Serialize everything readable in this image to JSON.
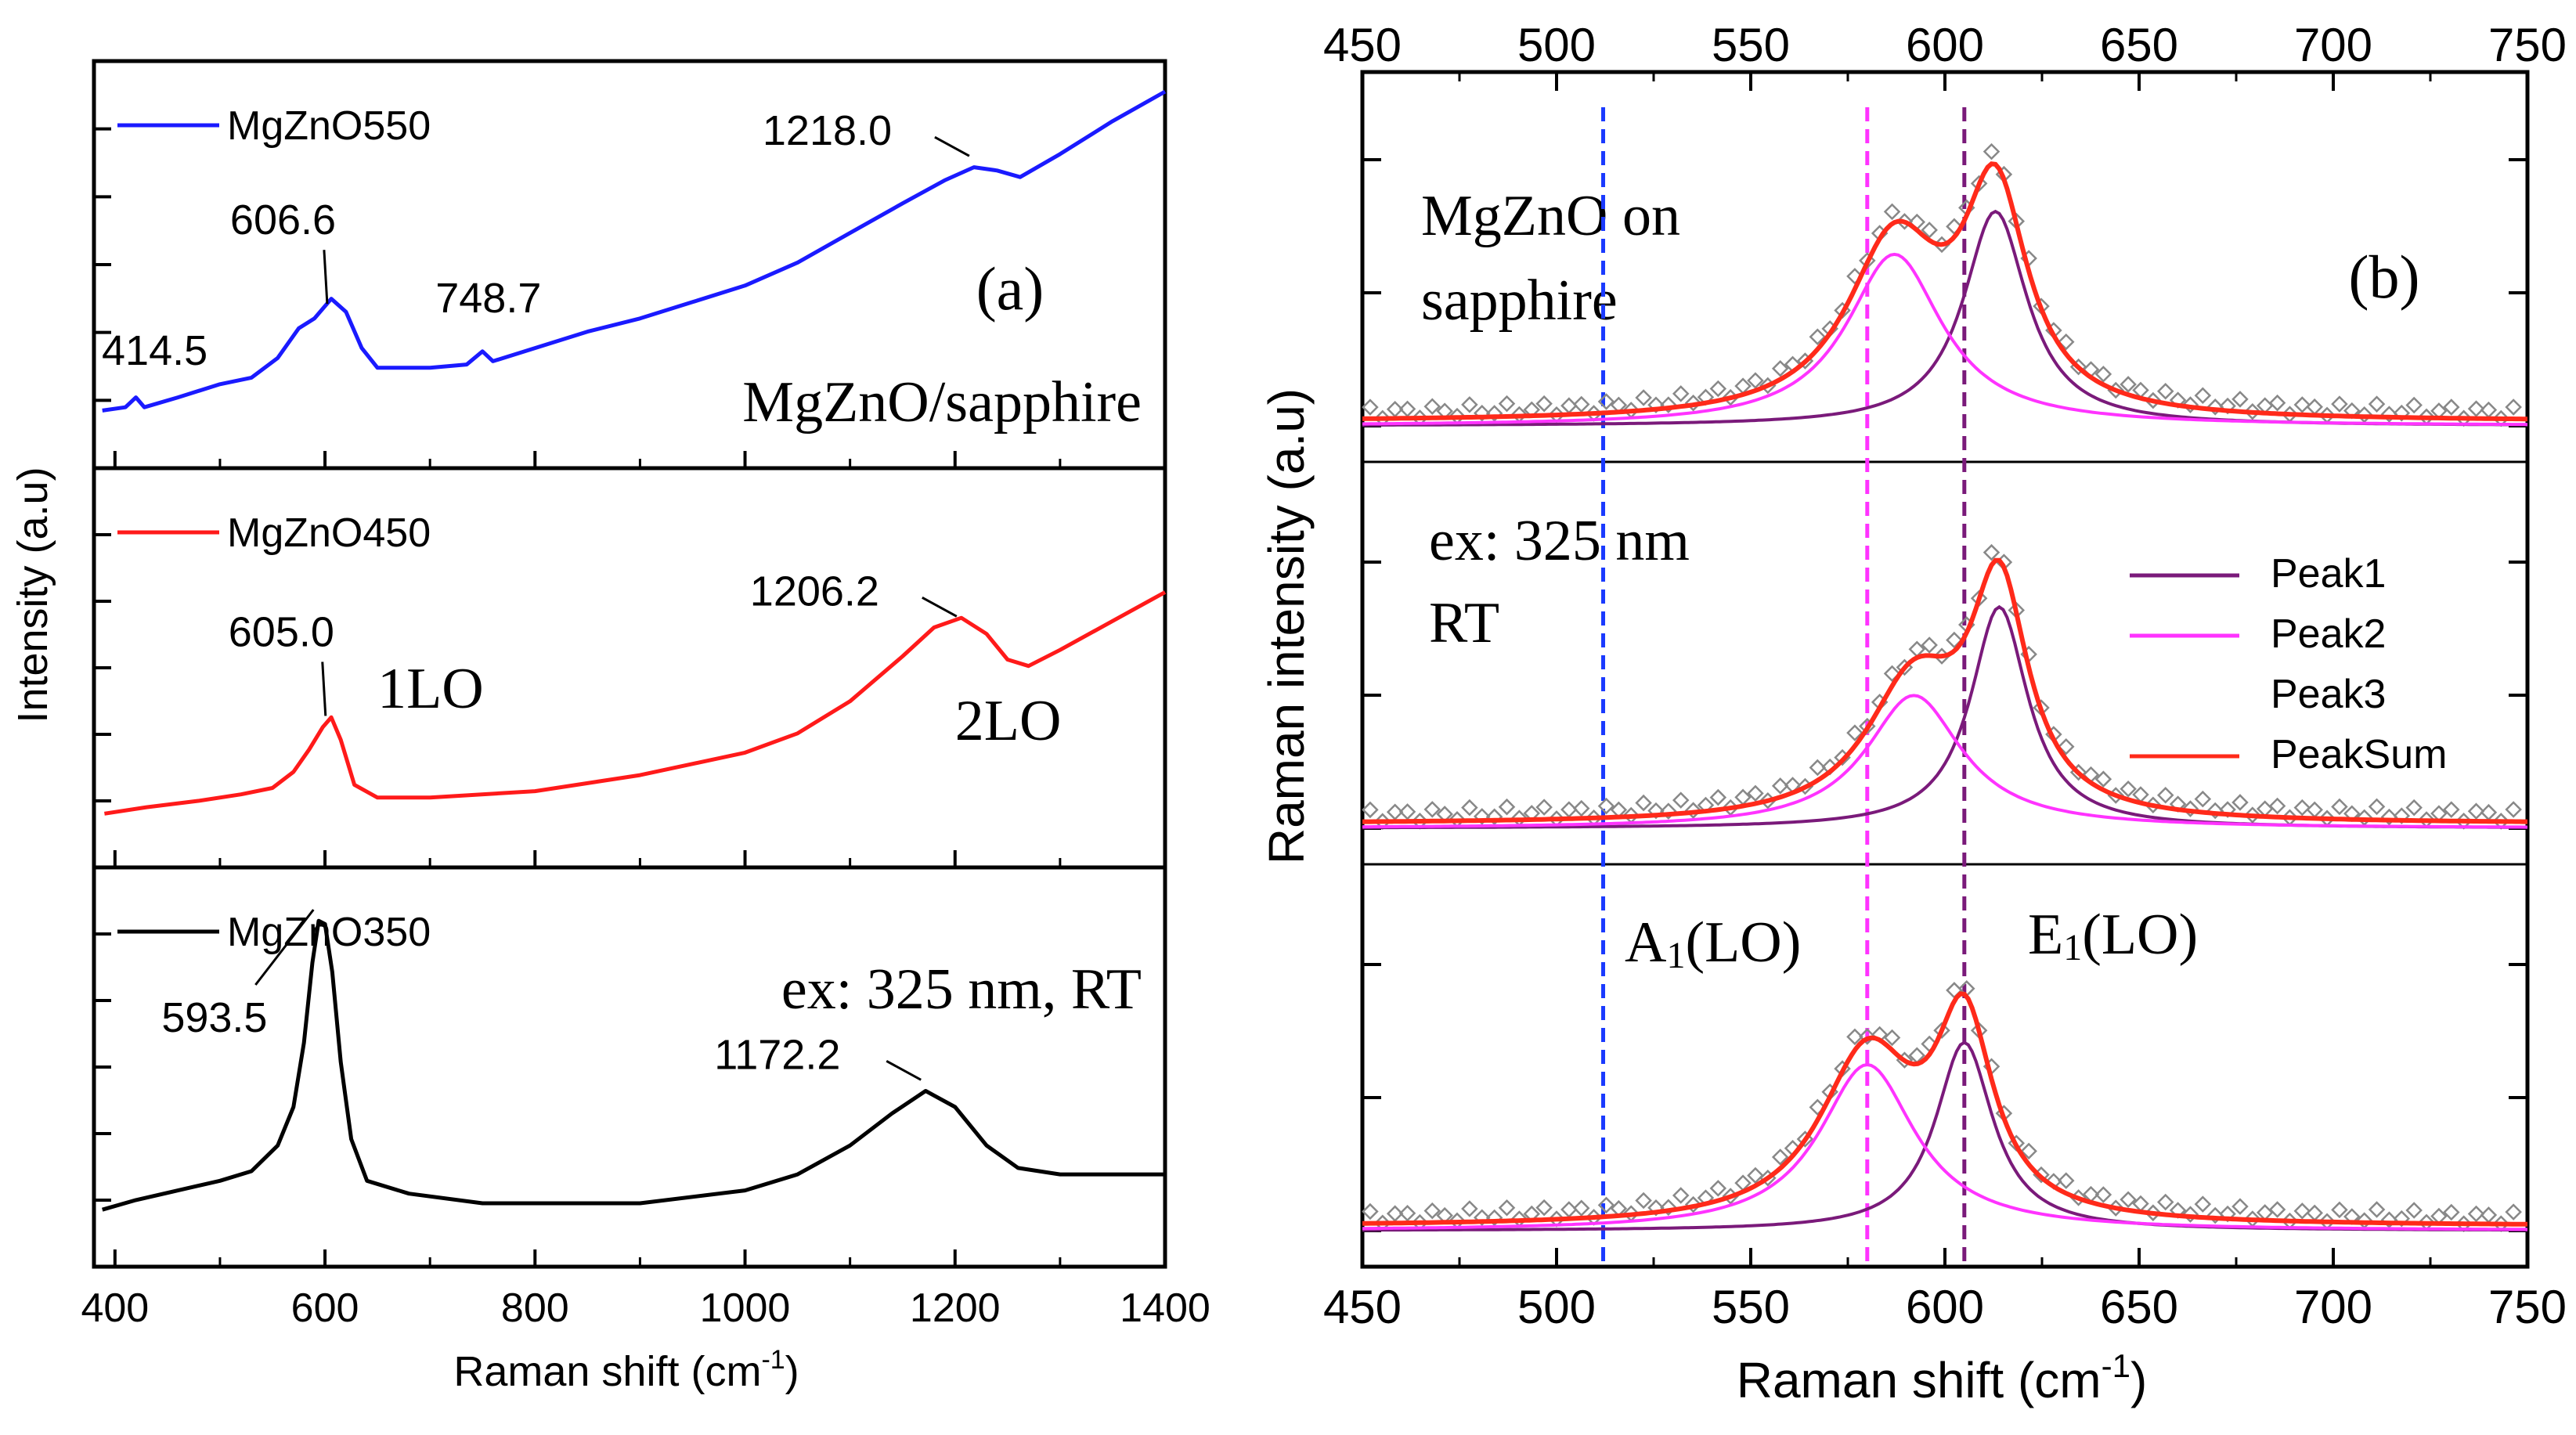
{
  "colors": {
    "MgZnO550": "#1a1aff",
    "MgZnO450": "#ff1a1a",
    "MgZnO350": "#000000",
    "Peak1": "#7a1a7a",
    "Peak2": "#ff33ff",
    "PeakSum": "#ff2a1a",
    "exp": "#888888",
    "panel_label": "#2020d0",
    "line_blue": "#1a3aff",
    "line_magenta": "#ff33ff",
    "line_purple": "#7a1a7a"
  },
  "chart_data": [
    {
      "id": "a",
      "type": "line",
      "panel_label": "(a)",
      "xlabel": "Raman shift (cm",
      "xlabel_sup": "-1",
      "xlabel_end": ")",
      "ylabel": "Intensity (a.u)",
      "xlim": [
        380,
        1400
      ],
      "xticks": [
        400,
        600,
        800,
        1000,
        1200,
        1400
      ],
      "xtick_labels": [
        "400",
        "600",
        "800",
        "1000",
        "1200",
        "1400"
      ],
      "subpanels": [
        {
          "series": "MgZnO550",
          "legend": "MgZnO550",
          "sample_label": "MgZnO/sapphire",
          "peaks": [
            {
              "label": "414.5",
              "x": 420,
              "y": 0.1
            },
            {
              "label": "606.6",
              "x": 606.6,
              "y": 0.39
            },
            {
              "label": "748.7",
              "x": 750,
              "y": 0.2
            },
            {
              "label": "1218.0",
              "x": 1218,
              "y": 0.84
            }
          ],
          "points": [
            [
              388,
              0.08
            ],
            [
              410,
              0.09
            ],
            [
              420,
              0.12
            ],
            [
              428,
              0.09
            ],
            [
              460,
              0.12
            ],
            [
              500,
              0.16
            ],
            [
              530,
              0.18
            ],
            [
              555,
              0.24
            ],
            [
              575,
              0.33
            ],
            [
              590,
              0.36
            ],
            [
              606,
              0.42
            ],
            [
              620,
              0.38
            ],
            [
              635,
              0.27
            ],
            [
              650,
              0.21
            ],
            [
              700,
              0.21
            ],
            [
              735,
              0.22
            ],
            [
              750,
              0.26
            ],
            [
              760,
              0.23
            ],
            [
              800,
              0.27
            ],
            [
              850,
              0.32
            ],
            [
              900,
              0.36
            ],
            [
              950,
              0.41
            ],
            [
              1000,
              0.46
            ],
            [
              1050,
              0.53
            ],
            [
              1100,
              0.62
            ],
            [
              1150,
              0.71
            ],
            [
              1190,
              0.78
            ],
            [
              1218,
              0.82
            ],
            [
              1240,
              0.81
            ],
            [
              1262,
              0.79
            ],
            [
              1300,
              0.86
            ],
            [
              1350,
              0.96
            ],
            [
              1400,
              1.05
            ]
          ]
        },
        {
          "series": "MgZnO450",
          "legend": "MgZnO450",
          "sample_label": "",
          "mode_labels": [
            {
              "label": "1LO",
              "x": 650,
              "y": 0.4
            },
            {
              "label": "2LO",
              "x": 1200,
              "y": 0.3
            }
          ],
          "peaks": [
            {
              "label": "605.0",
              "x": 605,
              "y": 0.36
            },
            {
              "label": "1206.2",
              "x": 1206,
              "y": 0.67
            }
          ],
          "points": [
            [
              390,
              0.07
            ],
            [
              430,
              0.09
            ],
            [
              480,
              0.11
            ],
            [
              520,
              0.13
            ],
            [
              550,
              0.15
            ],
            [
              570,
              0.2
            ],
            [
              585,
              0.27
            ],
            [
              598,
              0.34
            ],
            [
              606,
              0.37
            ],
            [
              615,
              0.3
            ],
            [
              628,
              0.16
            ],
            [
              650,
              0.12
            ],
            [
              700,
              0.12
            ],
            [
              800,
              0.14
            ],
            [
              900,
              0.19
            ],
            [
              1000,
              0.26
            ],
            [
              1050,
              0.32
            ],
            [
              1100,
              0.42
            ],
            [
              1150,
              0.56
            ],
            [
              1180,
              0.65
            ],
            [
              1206,
              0.68
            ],
            [
              1230,
              0.63
            ],
            [
              1250,
              0.55
            ],
            [
              1270,
              0.53
            ],
            [
              1300,
              0.58
            ],
            [
              1350,
              0.67
            ],
            [
              1400,
              0.76
            ]
          ]
        },
        {
          "series": "MgZnO350",
          "legend": "MgZnO350",
          "sample_label": "ex: 325 nm, RT",
          "peaks": [
            {
              "label": "593.5",
              "x": 593.5,
              "y": 1.0
            },
            {
              "label": "1172.2",
              "x": 1172,
              "y": 0.47
            }
          ],
          "points": [
            [
              388,
              0.08
            ],
            [
              420,
              0.11
            ],
            [
              460,
              0.14
            ],
            [
              500,
              0.17
            ],
            [
              530,
              0.2
            ],
            [
              555,
              0.28
            ],
            [
              570,
              0.4
            ],
            [
              580,
              0.6
            ],
            [
              588,
              0.85
            ],
            [
              594,
              0.98
            ],
            [
              600,
              0.97
            ],
            [
              607,
              0.82
            ],
            [
              615,
              0.54
            ],
            [
              625,
              0.3
            ],
            [
              640,
              0.17
            ],
            [
              680,
              0.13
            ],
            [
              750,
              0.1
            ],
            [
              800,
              0.1
            ],
            [
              900,
              0.1
            ],
            [
              1000,
              0.14
            ],
            [
              1050,
              0.19
            ],
            [
              1100,
              0.28
            ],
            [
              1140,
              0.38
            ],
            [
              1172,
              0.45
            ],
            [
              1200,
              0.4
            ],
            [
              1230,
              0.28
            ],
            [
              1260,
              0.21
            ],
            [
              1300,
              0.19
            ],
            [
              1350,
              0.19
            ],
            [
              1400,
              0.19
            ]
          ]
        }
      ]
    },
    {
      "id": "b",
      "type": "line",
      "panel_label": "(b)",
      "xlabel": "Raman  shift (cm",
      "xlabel_sup": "-1",
      "xlabel_end": ")",
      "ylabel": "Raman intensity (a.u)",
      "xlim": [
        450,
        750
      ],
      "xticks": [
        450,
        500,
        550,
        600,
        650,
        700,
        750
      ],
      "xtick_labels": [
        "450",
        "500",
        "550",
        "600",
        "650",
        "700",
        "750"
      ],
      "vlines": [
        {
          "x": 512,
          "color": "line_blue"
        },
        {
          "x": 580,
          "color": "line_magenta"
        },
        {
          "x": 605,
          "color": "line_purple"
        }
      ],
      "texts": {
        "sample": [
          "MgZnO on",
          "sapphire"
        ],
        "excitation": [
          "ex: 325 nm",
          "RT"
        ],
        "a1": "A",
        "a1_sub": "1",
        "a1_end": "(LO)",
        "e1": "E",
        "e1_sub": "1",
        "e1_end": "(LO)"
      },
      "legend": [
        {
          "label": "Peak1",
          "color": "Peak1"
        },
        {
          "label": "Peak2",
          "color": "Peak2"
        },
        {
          "label": "Peak3",
          "color": "none"
        },
        {
          "label": "PeakSum",
          "color": "PeakSum"
        }
      ],
      "subpanels": [
        {
          "peak1": {
            "center": 613,
            "amp": 1.0,
            "width": 10
          },
          "peak2": {
            "center": 587,
            "amp": 0.8,
            "width": 15
          },
          "baseline": 0.0,
          "exp_offset": 0.05
        },
        {
          "peak1": {
            "center": 614,
            "amp": 1.0,
            "width": 9
          },
          "peak2": {
            "center": 592,
            "amp": 0.6,
            "width": 15
          },
          "baseline": 0.0,
          "exp_offset": 0.05
        },
        {
          "peak1": {
            "center": 605,
            "amp": 0.85,
            "width": 9
          },
          "peak2": {
            "center": 580,
            "amp": 0.75,
            "width": 15
          },
          "baseline": 0.0,
          "exp_offset": 0.05
        }
      ]
    }
  ]
}
